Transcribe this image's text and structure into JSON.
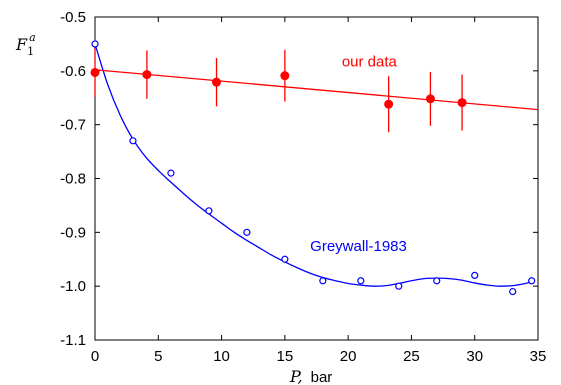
{
  "chart_data": {
    "type": "scatter",
    "xlim": [
      0,
      35
    ],
    "ylim": [
      -1.1,
      -0.5
    ],
    "x_ticks": [
      0,
      5,
      10,
      15,
      20,
      25,
      30,
      35
    ],
    "y_ticks": [
      -0.5,
      -0.6,
      -0.7,
      -0.8,
      -0.9,
      -1.0,
      -1.1
    ],
    "x_tick_labels": [
      "0",
      "5",
      "10",
      "15",
      "20",
      "25",
      "30",
      "35"
    ],
    "y_tick_labels": [
      "-0.5",
      "-0.6",
      "-0.7",
      "-0.8",
      "-0.9",
      "-1.0",
      "-1.1"
    ],
    "ylabel": {
      "main": "F",
      "sub": "1",
      "sup": "a"
    },
    "xlabel": {
      "symbol": "P,",
      "unit": "bar"
    },
    "grid": false,
    "series": [
      {
        "name": "our data",
        "color": "#ff0000",
        "marker": "filled-circle",
        "points": [
          {
            "x": 0,
            "y": -0.603,
            "err": 0.045
          },
          {
            "x": 4.1,
            "y": -0.607,
            "err": 0.045
          },
          {
            "x": 9.6,
            "y": -0.621,
            "err": 0.045
          },
          {
            "x": 15,
            "y": -0.609,
            "err": 0.048
          },
          {
            "x": 23.2,
            "y": -0.662,
            "err": 0.052
          },
          {
            "x": 26.5,
            "y": -0.652,
            "err": 0.05
          },
          {
            "x": 29,
            "y": -0.659,
            "err": 0.052
          }
        ],
        "fit": {
          "type": "linear",
          "x": [
            0,
            35
          ],
          "y": [
            -0.598,
            -0.672
          ]
        }
      },
      {
        "name": "Greywall-1983",
        "color": "#0000ff",
        "marker": "open-circle",
        "points": [
          {
            "x": 0,
            "y": -0.55
          },
          {
            "x": 3,
            "y": -0.73
          },
          {
            "x": 6,
            "y": -0.79
          },
          {
            "x": 9,
            "y": -0.86
          },
          {
            "x": 12,
            "y": -0.9
          },
          {
            "x": 15,
            "y": -0.95
          },
          {
            "x": 18,
            "y": -0.99
          },
          {
            "x": 21,
            "y": -0.99
          },
          {
            "x": 24,
            "y": -1.0
          },
          {
            "x": 27,
            "y": -0.99
          },
          {
            "x": 30,
            "y": -0.98
          },
          {
            "x": 33,
            "y": -1.01
          },
          {
            "x": 34.5,
            "y": -0.99
          }
        ],
        "curve": {
          "x": [
            0,
            1,
            2,
            3,
            4,
            5,
            6,
            7,
            8,
            9,
            10,
            11,
            12,
            13,
            14,
            15,
            16,
            17,
            18,
            19,
            20,
            21,
            22,
            23,
            24,
            25,
            26,
            27,
            28,
            29,
            30,
            31,
            32,
            33,
            34,
            34.5
          ],
          "y": [
            -0.55,
            -0.625,
            -0.683,
            -0.727,
            -0.76,
            -0.785,
            -0.807,
            -0.828,
            -0.848,
            -0.866,
            -0.883,
            -0.9,
            -0.915,
            -0.929,
            -0.943,
            -0.955,
            -0.966,
            -0.976,
            -0.984,
            -0.99,
            -0.995,
            -0.998,
            -1.0,
            -0.999,
            -0.995,
            -0.99,
            -0.986,
            -0.985,
            -0.986,
            -0.989,
            -0.994,
            -0.998,
            -1.0,
            -0.999,
            -0.995,
            -0.992
          ]
        }
      }
    ],
    "annotations": [
      {
        "text": "our data",
        "x": 19.5,
        "y": -0.592,
        "color": "#ff0000"
      },
      {
        "text": "Greywall-1983",
        "x": 17.0,
        "y": -0.935,
        "color": "#0000ff"
      }
    ]
  }
}
